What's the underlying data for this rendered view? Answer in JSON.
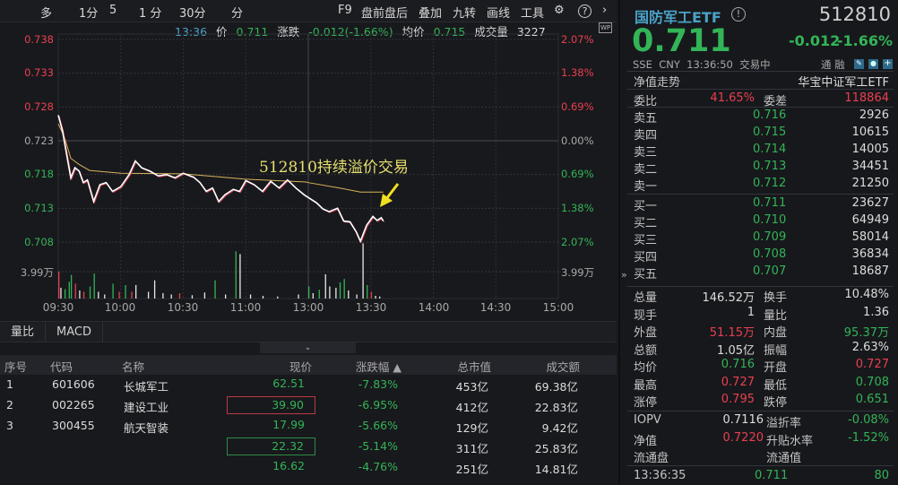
{
  "toolbar": {
    "period_tabs": [
      "多",
      "1分",
      "5",
      "1 分",
      "30分",
      "分"
    ],
    "buttons": [
      "F9",
      "盘前盘后",
      "叠加",
      "九转",
      "画线",
      "工具"
    ]
  },
  "info": {
    "time": "13:36",
    "price_label": "价",
    "price": "0.711",
    "change_label": "涨跌",
    "change": "-0.012(-1.66%)",
    "avg_label": "均价",
    "avg": "0.715",
    "vol_label": "成交量",
    "vol": "3227"
  },
  "chart_data": {
    "type": "line",
    "y_ticks_left": [
      "0.738",
      "0.733",
      "0.728",
      "0.723",
      "0.718",
      "0.713",
      "0.708"
    ],
    "y_ticks_right": [
      "2.07%",
      "1.38%",
      "0.69%",
      "0.00%",
      "0.69%",
      "1.38%",
      "2.07%"
    ],
    "ylim": [
      0.708,
      0.738
    ],
    "prev_close": 0.723,
    "x_ticks": [
      "09:30",
      "10:00",
      "10:30",
      "11:00",
      "13:00",
      "13:30",
      "14:00",
      "14:30",
      "15:00"
    ],
    "volume_tick": "3.99万",
    "annotation": "512810持续溢价交易",
    "price_series": [
      [
        "09:30",
        0.7268
      ],
      [
        "09:32",
        0.7245
      ],
      [
        "09:34",
        0.721
      ],
      [
        "09:36",
        0.7175
      ],
      [
        "09:38",
        0.719
      ],
      [
        "09:40",
        0.7185
      ],
      [
        "09:42",
        0.7168
      ],
      [
        "09:44",
        0.7172
      ],
      [
        "09:47",
        0.714
      ],
      [
        "09:50",
        0.7165
      ],
      [
        "09:53",
        0.7168
      ],
      [
        "09:56",
        0.7155
      ],
      [
        "10:00",
        0.7162
      ],
      [
        "10:04",
        0.718
      ],
      [
        "10:07",
        0.72
      ],
      [
        "10:10",
        0.719
      ],
      [
        "10:14",
        0.7185
      ],
      [
        "10:18",
        0.7178
      ],
      [
        "10:22",
        0.718
      ],
      [
        "10:26",
        0.7175
      ],
      [
        "10:30",
        0.7182
      ],
      [
        "10:35",
        0.7176
      ],
      [
        "10:38",
        0.7168
      ],
      [
        "10:41",
        0.7155
      ],
      [
        "10:44",
        0.716
      ],
      [
        "10:47",
        0.714
      ],
      [
        "10:50",
        0.715
      ],
      [
        "10:54",
        0.7158
      ],
      [
        "10:57",
        0.7155
      ],
      [
        "11:00",
        0.7171
      ],
      [
        "11:04",
        0.7165
      ],
      [
        "11:08",
        0.7155
      ],
      [
        "11:12",
        0.717
      ],
      [
        "11:16",
        0.716
      ],
      [
        "11:20",
        0.7172
      ],
      [
        "11:24",
        0.716
      ],
      [
        "11:28",
        0.715
      ],
      [
        "13:00",
        0.7146
      ],
      [
        "13:04",
        0.7138
      ],
      [
        "13:07",
        0.7129
      ],
      [
        "13:10",
        0.7125
      ],
      [
        "13:14",
        0.713
      ],
      [
        "13:17",
        0.7111
      ],
      [
        "13:20",
        0.711
      ],
      [
        "13:23",
        0.7095
      ],
      [
        "13:25",
        0.7081
      ],
      [
        "13:28",
        0.7105
      ],
      [
        "13:31",
        0.7118
      ],
      [
        "13:33",
        0.7112
      ],
      [
        "13:35",
        0.7116
      ],
      [
        "13:36",
        0.7111
      ]
    ],
    "avg_series": [
      [
        "09:30",
        0.7255
      ],
      [
        "09:33",
        0.7235
      ],
      [
        "09:36",
        0.7204
      ],
      [
        "09:40",
        0.7195
      ],
      [
        "09:45",
        0.7186
      ],
      [
        "10:00",
        0.7182
      ],
      [
        "10:30",
        0.7181
      ],
      [
        "11:00",
        0.7173
      ],
      [
        "11:29",
        0.7169
      ],
      [
        "13:00",
        0.7168
      ],
      [
        "13:15",
        0.716
      ],
      [
        "13:25",
        0.7154
      ],
      [
        "13:36",
        0.7154
      ]
    ],
    "volume_wan": [
      [
        "09:30",
        4.0,
        "red"
      ],
      [
        "09:31",
        1.6,
        "white"
      ],
      [
        "09:33",
        1.4,
        "green"
      ],
      [
        "09:35",
        2.5,
        "green"
      ],
      [
        "09:36",
        3.5,
        "green"
      ],
      [
        "09:38",
        2.2,
        "red"
      ],
      [
        "09:40",
        1.2,
        "white"
      ],
      [
        "09:42",
        1.0,
        "red"
      ],
      [
        "09:45",
        1.8,
        "green"
      ],
      [
        "09:47",
        3.7,
        "green"
      ],
      [
        "09:49",
        1.0,
        "white"
      ],
      [
        "09:52",
        0.6,
        "white"
      ],
      [
        "09:56",
        2.2,
        "green"
      ],
      [
        "09:59",
        1.0,
        "red"
      ],
      [
        "10:02",
        2.0,
        "green"
      ],
      [
        "10:05",
        1.0,
        "red"
      ],
      [
        "10:07",
        2.0,
        "white"
      ],
      [
        "10:13",
        1.0,
        "white"
      ],
      [
        "10:16",
        2.7,
        "white"
      ],
      [
        "10:20",
        0.8,
        "white"
      ],
      [
        "10:24",
        0.6,
        "white"
      ],
      [
        "10:28",
        0.8,
        "red"
      ],
      [
        "10:34",
        0.5,
        "white"
      ],
      [
        "10:40",
        0.9,
        "white"
      ],
      [
        "10:45",
        2.7,
        "green"
      ],
      [
        "10:50",
        0.6,
        "white"
      ],
      [
        "10:55",
        7.0,
        "green"
      ],
      [
        "10:57",
        6.6,
        "white"
      ],
      [
        "11:02",
        0.6,
        "white"
      ],
      [
        "11:08",
        0.4,
        "white"
      ],
      [
        "11:15",
        0.3,
        "white"
      ],
      [
        "11:25",
        0.6,
        "white"
      ],
      [
        "13:00",
        1.8,
        "green"
      ],
      [
        "13:02",
        0.8,
        "white"
      ],
      [
        "13:05",
        1.3,
        "green"
      ],
      [
        "13:08",
        3.6,
        "white"
      ],
      [
        "13:10",
        1.8,
        "white"
      ],
      [
        "13:13",
        1.6,
        "white"
      ],
      [
        "13:15",
        2.4,
        "green"
      ],
      [
        "13:17",
        2.9,
        "green"
      ],
      [
        "13:19",
        1.2,
        "white"
      ],
      [
        "13:23",
        0.6,
        "white"
      ],
      [
        "13:26",
        8.2,
        "white"
      ],
      [
        "13:28",
        2.0,
        "green"
      ],
      [
        "13:30",
        1.0,
        "red"
      ],
      [
        "13:32",
        0.4,
        "white"
      ],
      [
        "13:34",
        0.3,
        "white"
      ]
    ]
  },
  "bottom_tabs": [
    "量比",
    "MACD"
  ],
  "table": {
    "headers": [
      "序号",
      "代码",
      "名称",
      "现价",
      "涨跌幅 ▲",
      "总市值",
      "成交额"
    ],
    "rows": [
      {
        "no": "1",
        "code": "601606",
        "name": "长城军工",
        "price": "62.51",
        "chg": "-7.83%",
        "mcap": "453亿",
        "amount": "69.38亿"
      },
      {
        "no": "2",
        "code": "002265",
        "name": "建设工业",
        "price": "39.90",
        "chg": "-6.95%",
        "mcap": "412亿",
        "amount": "22.83亿"
      },
      {
        "no": "3",
        "code": "300455",
        "name": "航天智装",
        "price": "17.99",
        "chg": "-5.66%",
        "mcap": "129亿",
        "amount": "9.42亿"
      },
      {
        "no": "",
        "code": "",
        "name": "",
        "price": "22.32",
        "chg": "-5.14%",
        "mcap": "311亿",
        "amount": "25.83亿"
      },
      {
        "no": "",
        "code": "",
        "name": "",
        "price": "16.62",
        "chg": "-4.76%",
        "mcap": "251亿",
        "amount": "14.81亿"
      }
    ]
  },
  "quote": {
    "name": "国防军工ETF",
    "code": "512810",
    "price": "0.711",
    "change": "-0.012",
    "pct": "-1.66%",
    "exchange": "SSE",
    "currency": "CNY",
    "time": "13:36:50",
    "status": "交易中",
    "tags": [
      "通",
      "融"
    ],
    "nav_trend": "净值走势",
    "index_name": "华宝中证军工ETF",
    "weibi_label": "委比",
    "weibi": "41.65%",
    "weicha_label": "委差",
    "weicha": "118864",
    "asks": [
      {
        "label": "卖五",
        "price": "0.716",
        "vol": "2926"
      },
      {
        "label": "卖四",
        "price": "0.715",
        "vol": "10615"
      },
      {
        "label": "卖三",
        "price": "0.714",
        "vol": "14005"
      },
      {
        "label": "卖二",
        "price": "0.713",
        "vol": "34451"
      },
      {
        "label": "卖一",
        "price": "0.712",
        "vol": "21250"
      }
    ],
    "bids": [
      {
        "label": "买一",
        "price": "0.711",
        "vol": "23627"
      },
      {
        "label": "买二",
        "price": "0.710",
        "vol": "64949"
      },
      {
        "label": "买三",
        "price": "0.709",
        "vol": "58014"
      },
      {
        "label": "买四",
        "price": "0.708",
        "vol": "36834"
      },
      {
        "label": "买五",
        "price": "0.707",
        "vol": "18687"
      }
    ],
    "stats": [
      {
        "l": "总量",
        "v": "146.52万",
        "c": "white",
        "l2": "换手",
        "v2": "10.48%",
        "c2": "white"
      },
      {
        "l": "现手",
        "v": "1",
        "c": "white",
        "l2": "量比",
        "v2": "1.36",
        "c2": "white"
      },
      {
        "l": "外盘",
        "v": "51.15万",
        "c": "red",
        "l2": "内盘",
        "v2": "95.37万",
        "c2": "green"
      },
      {
        "l": "总额",
        "v": "1.05亿",
        "c": "white",
        "l2": "振幅",
        "v2": "2.63%",
        "c2": "white"
      },
      {
        "l": "均价",
        "v": "0.716",
        "c": "green",
        "l2": "开盘",
        "v2": "0.727",
        "c2": "red"
      },
      {
        "l": "最高",
        "v": "0.727",
        "c": "red",
        "l2": "最低",
        "v2": "0.708",
        "c2": "green"
      },
      {
        "l": "涨停",
        "v": "0.795",
        "c": "red",
        "l2": "跌停",
        "v2": "0.651",
        "c2": "green"
      }
    ],
    "etf": [
      {
        "l": "IOPV",
        "v": "0.7116",
        "c": "white",
        "l2": "溢折率",
        "v2": "-0.08%",
        "c2": "green"
      },
      {
        "l": "净值",
        "v": "0.7220",
        "c": "red",
        "l2": "升贴水率",
        "v2": "-1.52%",
        "c2": "green"
      },
      {
        "l": "流通盘",
        "v": "",
        "c": "white",
        "l2": "流通值",
        "v2": "",
        "c2": "white"
      }
    ],
    "tick": {
      "time": "13:36:35",
      "price": "0.711",
      "vol": "80"
    }
  },
  "colors": {
    "up": "#e8404f",
    "down": "#33b457",
    "price_line": "#ffffff",
    "avg_line": "#d8b25a",
    "annotation": "#e6df6e",
    "bg": "#18191d"
  }
}
